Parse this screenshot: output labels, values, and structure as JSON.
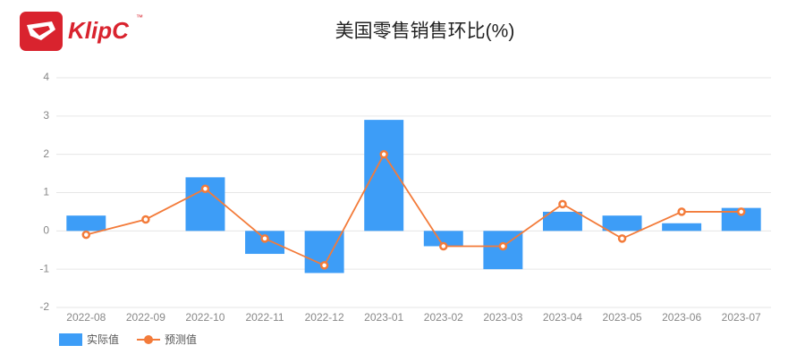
{
  "logo": {
    "text": "KlipC",
    "trademark": "™"
  },
  "chart_data": {
    "type": "bar-line",
    "title": "美国零售销售环比(%)",
    "categories": [
      "2022-08",
      "2022-09",
      "2022-10",
      "2022-11",
      "2022-12",
      "2023-01",
      "2023-02",
      "2023-03",
      "2023-04",
      "2023-05",
      "2023-06",
      "2023-07"
    ],
    "series": [
      {
        "name": "实际值",
        "color": "#3d9df7",
        "type": "bar",
        "values": [
          0.4,
          null,
          1.4,
          -0.6,
          -1.1,
          2.9,
          -0.4,
          -1.0,
          0.5,
          0.4,
          0.2,
          0.6
        ]
      },
      {
        "name": "预测值",
        "color": "#f37b3a",
        "type": "line",
        "values": [
          -0.1,
          0.3,
          1.1,
          -0.2,
          -0.9,
          2.0,
          -0.4,
          -0.4,
          0.7,
          -0.2,
          0.5,
          0.5
        ]
      }
    ],
    "ylim": [
      -2,
      4
    ],
    "yticks": [
      -2,
      -1,
      0,
      1,
      2,
      3,
      4
    ],
    "grid": true,
    "legend": "bottom-left"
  }
}
